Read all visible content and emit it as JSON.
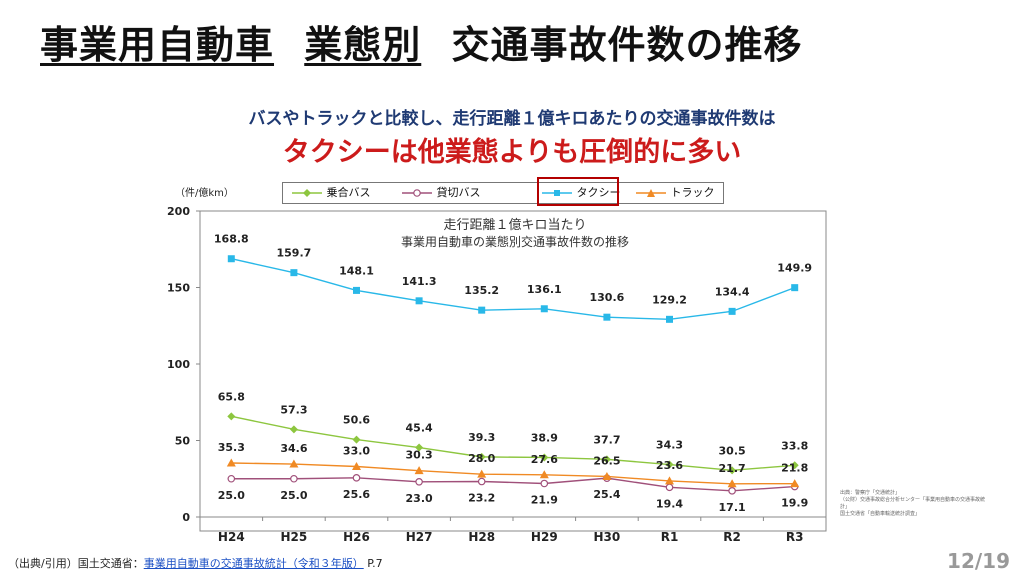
{
  "title": {
    "part1": "事業用自動車",
    "part2": "業態別",
    "part3": "交通事故件数の推移"
  },
  "subtitle": "バスやトラックと比較し、走行距離１億キロあたりの交通事故件数は",
  "headline": "タクシーは他業態よりも圧倒的に多い",
  "y_unit": "（件/億km）",
  "chart_data": {
    "type": "line",
    "title": "走行距離１億キロ当たり",
    "subtitle": "事業用自動車の業態別交通事故件数の推移",
    "categories": [
      "H24",
      "H25",
      "H26",
      "H27",
      "H28",
      "H29",
      "H30",
      "R1",
      "R2",
      "R3"
    ],
    "ylim": [
      0,
      200
    ],
    "yticks": [
      "0",
      "50",
      "100",
      "150",
      "200"
    ],
    "series": [
      {
        "name": "乗合バス",
        "color": "#8dc63f",
        "marker": "diamond",
        "values": [
          65.8,
          57.3,
          50.6,
          45.4,
          39.3,
          38.9,
          37.7,
          34.3,
          30.5,
          33.8
        ],
        "labels": [
          "65.8",
          "57.3",
          "50.6",
          "45.4",
          "39.3",
          "38.9",
          "37.7",
          "34.3",
          "30.5",
          "33.8"
        ]
      },
      {
        "name": "貸切バス",
        "color": "#a0507a",
        "marker": "circle",
        "values": [
          25.0,
          25.0,
          25.6,
          23.0,
          23.2,
          21.9,
          25.4,
          19.4,
          17.1,
          19.9
        ],
        "labels": [
          "25.0",
          "25.0",
          "25.6",
          "23.0",
          "23.2",
          "21.9",
          "25.4",
          "19.4",
          "17.1",
          "19.9"
        ]
      },
      {
        "name": "タクシー",
        "color": "#29b8e8",
        "marker": "square",
        "values": [
          168.8,
          159.7,
          148.1,
          141.3,
          135.2,
          136.1,
          130.6,
          129.2,
          134.4,
          149.9
        ],
        "labels": [
          "168.8",
          "159.7",
          "148.1",
          "141.3",
          "135.2",
          "136.1",
          "130.6",
          "129.2",
          "134.4",
          "149.9"
        ]
      },
      {
        "name": "トラック",
        "color": "#f08a24",
        "marker": "triangle",
        "values": [
          35.3,
          34.6,
          33.0,
          30.3,
          28.0,
          27.6,
          26.5,
          23.6,
          21.7,
          21.8
        ],
        "labels": [
          "35.3",
          "34.6",
          "33.0",
          "30.3",
          "28.0",
          "27.6",
          "26.5",
          "23.6",
          "21.7",
          "21.8"
        ]
      }
    ]
  },
  "source_note": [
    "出典：警察庁「交通統計」",
    "（公財）交通事故総合分析センター「事業用自動車の交通事故統計」",
    "国土交通省「自動車輸送統計調査」"
  ],
  "footer": {
    "prefix": "（出典/引用）国土交通省：",
    "link_text": "事業用自動車の交通事故統計（令和３年版）",
    "suffix": " P.7"
  },
  "page_number": "12/19"
}
